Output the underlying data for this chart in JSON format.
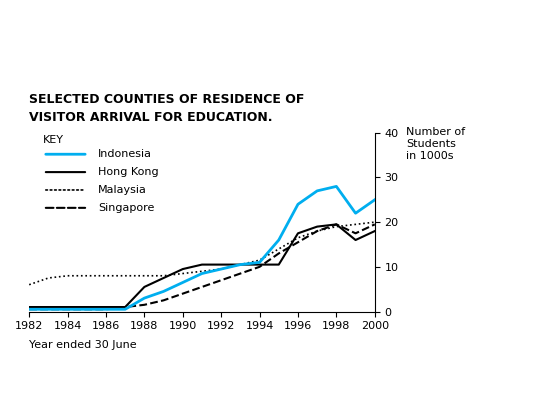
{
  "title_line1": "SELECTED COUNTIES OF RESIDENCE OF",
  "title_line2": "VISITOR ARRIVAL FOR EDUCATION.",
  "ylabel": "Number of\nStudents\nin 1000s",
  "xlabel": "Year ended 30 June",
  "ylim": [
    0,
    40
  ],
  "years": [
    1982,
    1983,
    1984,
    1985,
    1986,
    1987,
    1988,
    1989,
    1990,
    1991,
    1992,
    1993,
    1994,
    1995,
    1996,
    1997,
    1998,
    1999,
    2000
  ],
  "indonesia": [
    0.5,
    0.5,
    0.5,
    0.5,
    0.5,
    0.5,
    3.0,
    4.5,
    6.5,
    8.5,
    9.5,
    10.5,
    11.0,
    16.0,
    24.0,
    27.0,
    28.0,
    22.0,
    25.0
  ],
  "hong_kong": [
    1.0,
    1.0,
    1.0,
    1.0,
    1.0,
    1.0,
    5.5,
    7.5,
    9.5,
    10.5,
    10.5,
    10.5,
    10.5,
    10.5,
    17.5,
    19.0,
    19.5,
    16.0,
    18.0
  ],
  "malaysia": [
    6.0,
    7.5,
    8.0,
    8.0,
    8.0,
    8.0,
    8.0,
    8.0,
    8.5,
    9.0,
    9.5,
    10.5,
    11.5,
    14.0,
    16.5,
    18.0,
    19.0,
    19.5,
    20.0
  ],
  "singapore": [
    0.5,
    0.5,
    0.5,
    0.5,
    0.5,
    1.0,
    1.5,
    2.5,
    4.0,
    5.5,
    7.0,
    8.5,
    10.0,
    13.0,
    15.5,
    18.0,
    19.5,
    17.5,
    19.5
  ],
  "indonesia_color": "#00AEEF",
  "hong_kong_color": "#000000",
  "malaysia_color": "#000000",
  "singapore_color": "#000000",
  "bg_color": "#FFFFFF"
}
